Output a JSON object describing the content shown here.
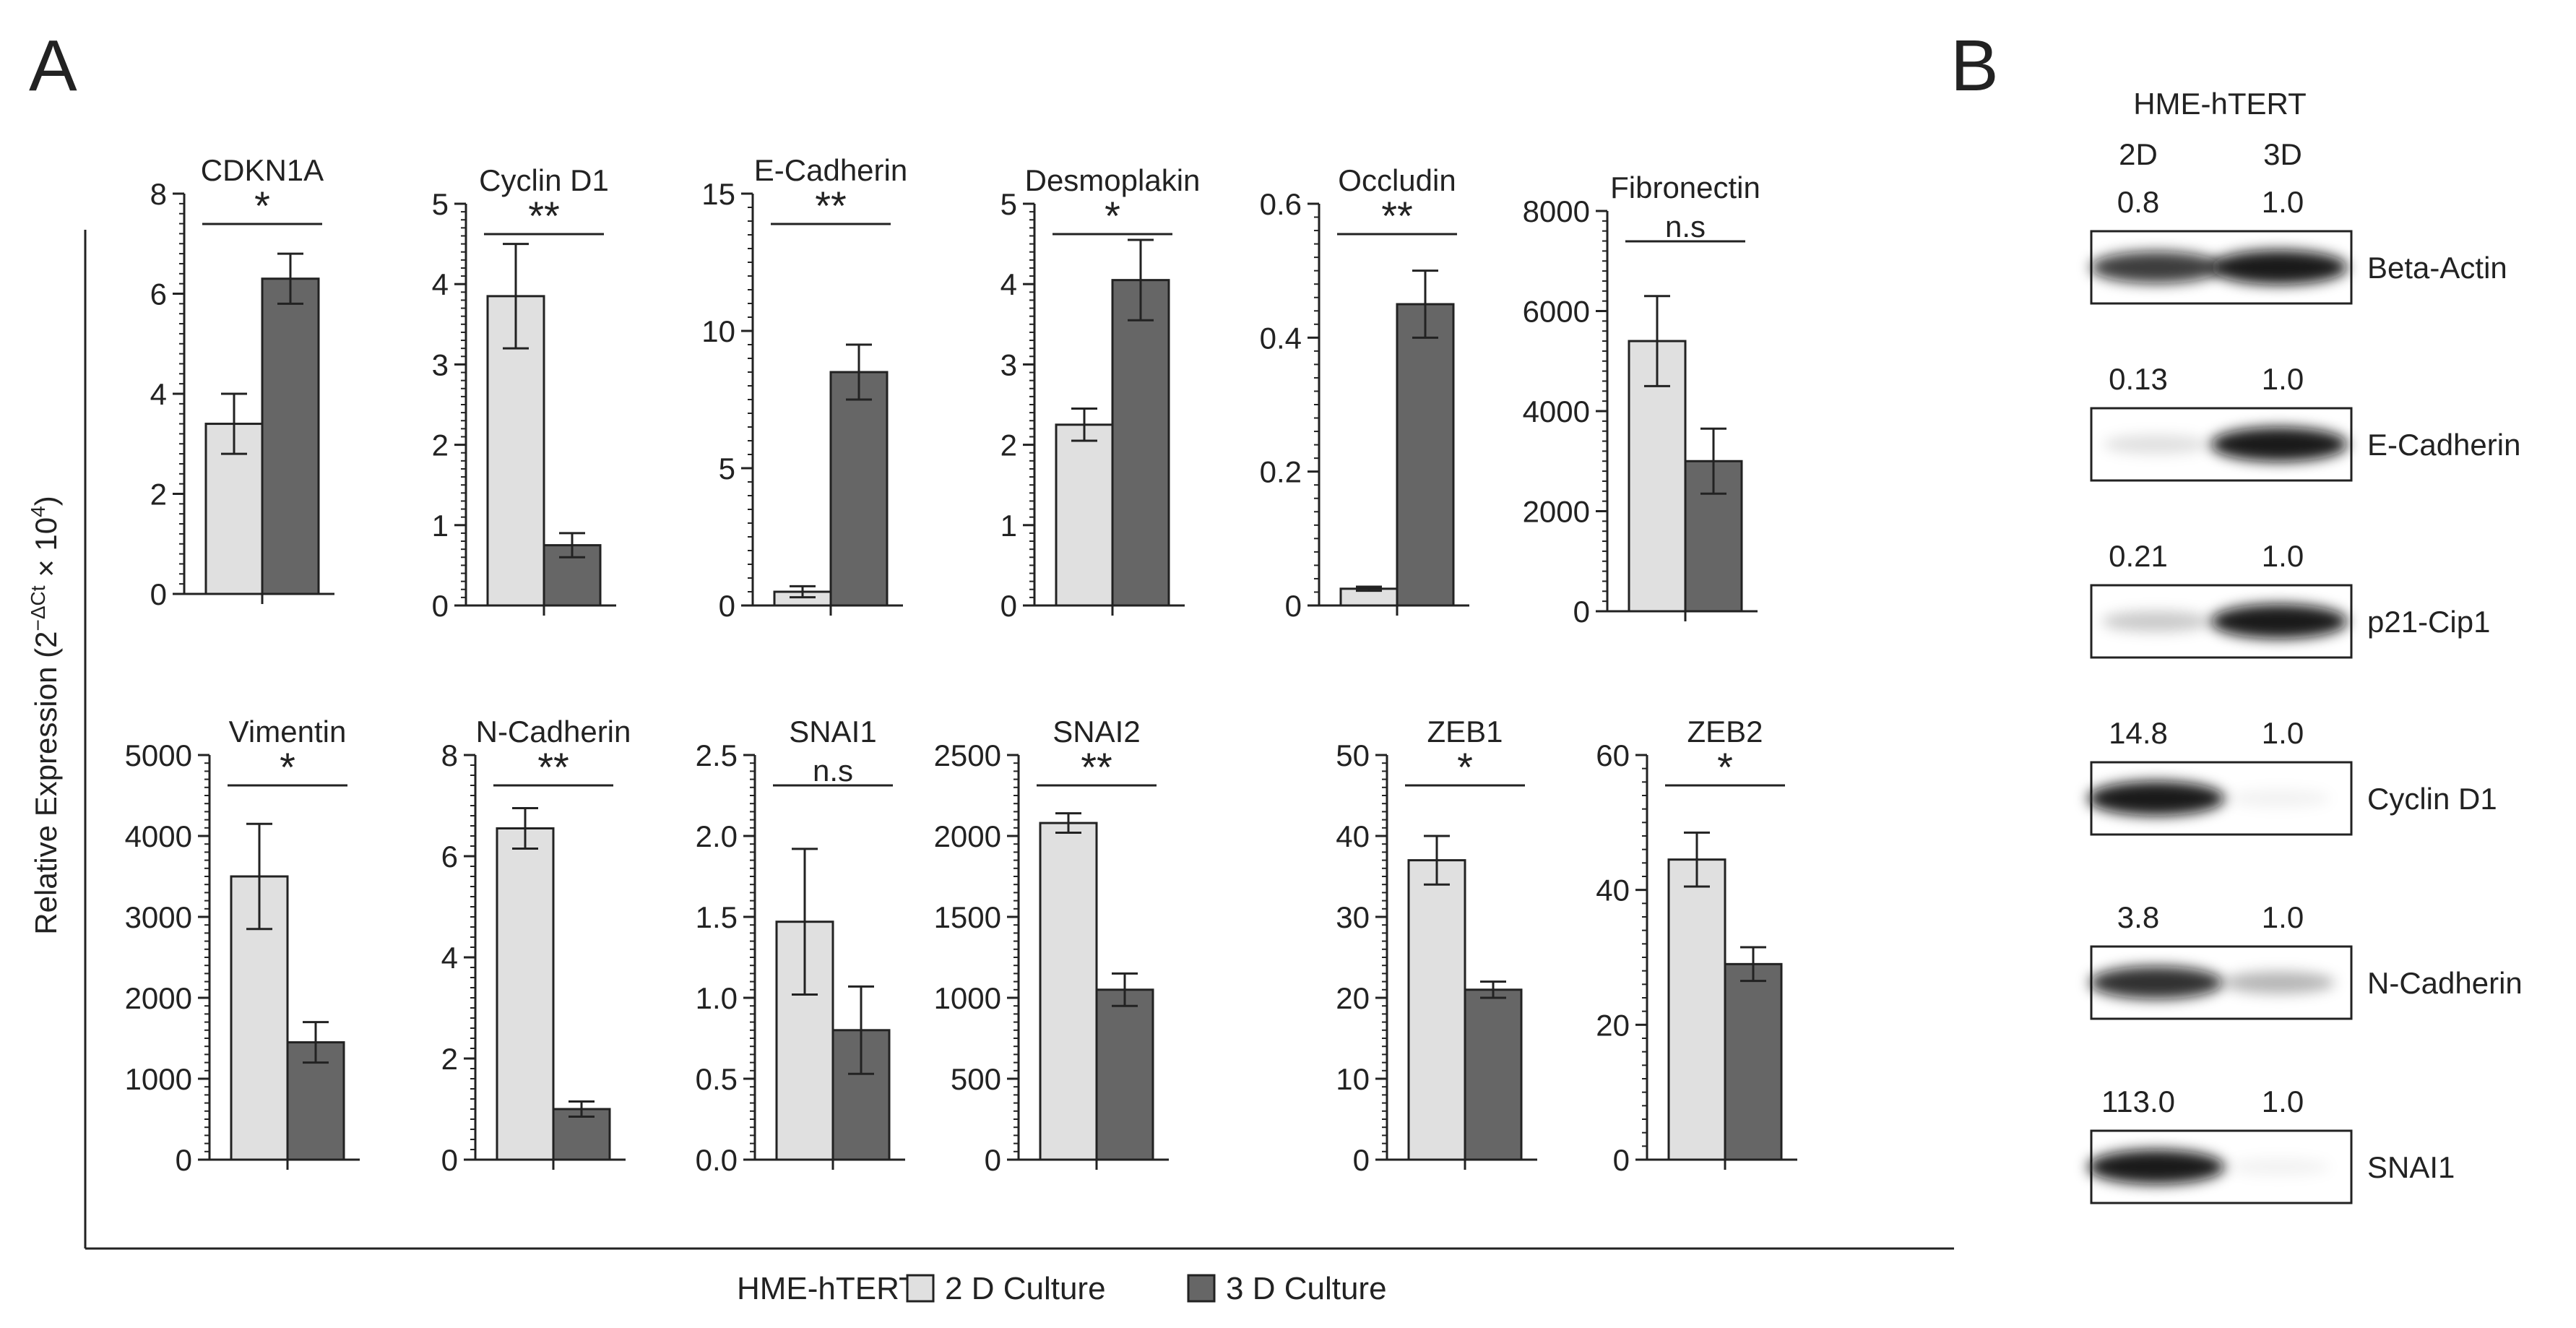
{
  "panel_labels": {
    "a": "A",
    "b": "B"
  },
  "y_axis_label": "Relative Expression (2",
  "y_axis_label_sup": "−ΔCt",
  "y_axis_label_tail": " × 10",
  "y_axis_label_sup2": "4",
  "y_axis_label_close": ")",
  "legend": {
    "title": "HME-hTERT",
    "items": [
      {
        "label": "2 D Culture",
        "color": "#e0e0e0"
      },
      {
        "label": "3 D Culture",
        "color": "#666666"
      }
    ]
  },
  "chart_data": [
    {
      "type": "bar",
      "title": "CDKN1A",
      "categories": [
        "2 D Culture",
        "3 D Culture"
      ],
      "values": [
        3.4,
        6.3
      ],
      "errors": [
        0.6,
        0.5
      ],
      "ylim": [
        0,
        8
      ],
      "ticks": [
        "0",
        "2",
        "4",
        "6",
        "8"
      ],
      "significance": "*"
    },
    {
      "type": "bar",
      "title": "Cyclin D1",
      "categories": [
        "2 D Culture",
        "3 D Culture"
      ],
      "values": [
        3.85,
        0.75
      ],
      "errors": [
        0.65,
        0.15
      ],
      "ylim": [
        0,
        5
      ],
      "ticks": [
        "0",
        "1",
        "2",
        "3",
        "4",
        "5"
      ],
      "significance": "**"
    },
    {
      "type": "bar",
      "title": "E-Cadherin",
      "categories": [
        "2 D Culture",
        "3 D Culture"
      ],
      "values": [
        0.5,
        8.5
      ],
      "errors": [
        0.2,
        1.0
      ],
      "ylim": [
        0,
        15
      ],
      "ticks": [
        "0",
        "5",
        "10",
        "15"
      ],
      "significance": "**"
    },
    {
      "type": "bar",
      "title": "Desmoplakin",
      "categories": [
        "2 D Culture",
        "3 D Culture"
      ],
      "values": [
        2.25,
        4.05
      ],
      "errors": [
        0.2,
        0.5
      ],
      "ylim": [
        0,
        5
      ],
      "ticks": [
        "0",
        "1",
        "2",
        "3",
        "4",
        "5"
      ],
      "significance": "*"
    },
    {
      "type": "bar",
      "title": "Occludin",
      "categories": [
        "2 D Culture",
        "3 D Culture"
      ],
      "values": [
        0.025,
        0.45
      ],
      "errors": [
        0.003,
        0.05
      ],
      "ylim": [
        0,
        0.6
      ],
      "ticks": [
        "0",
        "0.2",
        "0.4",
        "0.6"
      ],
      "significance": "**"
    },
    {
      "type": "bar",
      "title": "Fibronectin",
      "categories": [
        "2 D Culture",
        "3 D Culture"
      ],
      "values": [
        5400,
        3000
      ],
      "errors": [
        900,
        650
      ],
      "ylim": [
        0,
        8000
      ],
      "ticks": [
        "0",
        "2000",
        "4000",
        "6000",
        "8000"
      ],
      "significance": "n.s"
    },
    {
      "type": "bar",
      "title": "Vimentin",
      "categories": [
        "2 D Culture",
        "3 D Culture"
      ],
      "values": [
        3500,
        1450
      ],
      "errors": [
        650,
        250
      ],
      "ylim": [
        0,
        5000
      ],
      "ticks": [
        "0",
        "1000",
        "2000",
        "3000",
        "4000",
        "5000"
      ],
      "significance": "*"
    },
    {
      "type": "bar",
      "title": "N-Cadherin",
      "categories": [
        "2 D Culture",
        "3 D Culture"
      ],
      "values": [
        6.55,
        1.0
      ],
      "errors": [
        0.4,
        0.15
      ],
      "ylim": [
        0,
        8
      ],
      "ticks": [
        "0",
        "2",
        "4",
        "6",
        "8"
      ],
      "significance": "**"
    },
    {
      "type": "bar",
      "title": "SNAI1",
      "categories": [
        "2 D Culture",
        "3 D Culture"
      ],
      "values": [
        1.47,
        0.8
      ],
      "errors": [
        0.45,
        0.27
      ],
      "ylim": [
        0,
        2.5
      ],
      "ticks": [
        "0.0",
        "0.5",
        "1.0",
        "1.5",
        "2.0",
        "2.5"
      ],
      "significance": "n.s"
    },
    {
      "type": "bar",
      "title": "SNAI2",
      "categories": [
        "2 D Culture",
        "3 D Culture"
      ],
      "values": [
        2080,
        1050
      ],
      "errors": [
        60,
        100
      ],
      "ylim": [
        0,
        2500
      ],
      "ticks": [
        "0",
        "500",
        "1000",
        "1500",
        "2000",
        "2500"
      ],
      "significance": "**"
    },
    {
      "type": "bar",
      "title": "ZEB1",
      "categories": [
        "2 D Culture",
        "3 D Culture"
      ],
      "values": [
        37,
        21
      ],
      "errors": [
        3,
        1
      ],
      "ylim": [
        0,
        50
      ],
      "ticks": [
        "0",
        "10",
        "20",
        "30",
        "40",
        "50"
      ],
      "significance": "*"
    },
    {
      "type": "bar",
      "title": "ZEB2",
      "categories": [
        "2 D Culture",
        "3 D Culture"
      ],
      "values": [
        44.5,
        29
      ],
      "errors": [
        4,
        2.5
      ],
      "ylim": [
        0,
        60
      ],
      "ticks": [
        "0",
        "20",
        "40",
        "60"
      ],
      "significance": "*"
    }
  ],
  "blot": {
    "cell_line": "HME-hTERT",
    "columns": [
      "2D",
      "3D"
    ],
    "rows": [
      {
        "protein": "Beta-Actin",
        "ratios": [
          "0.8",
          "1.0"
        ],
        "intensity": [
          0.85,
          1.0
        ]
      },
      {
        "protein": "E-Cadherin",
        "ratios": [
          "0.13",
          "1.0"
        ],
        "intensity": [
          0.13,
          1.0
        ]
      },
      {
        "protein": "p21-Cip1",
        "ratios": [
          "0.21",
          "1.0"
        ],
        "intensity": [
          0.22,
          1.0
        ]
      },
      {
        "protein": "Cyclin D1",
        "ratios": [
          "14.8",
          "1.0"
        ],
        "intensity": [
          1.0,
          0.05
        ]
      },
      {
        "protein": "N-Cadherin",
        "ratios": [
          "3.8",
          "1.0"
        ],
        "intensity": [
          0.9,
          0.3
        ]
      },
      {
        "protein": "SNAI1",
        "ratios": [
          "113.0",
          "1.0"
        ],
        "intensity": [
          1.0,
          0.02
        ]
      }
    ]
  }
}
